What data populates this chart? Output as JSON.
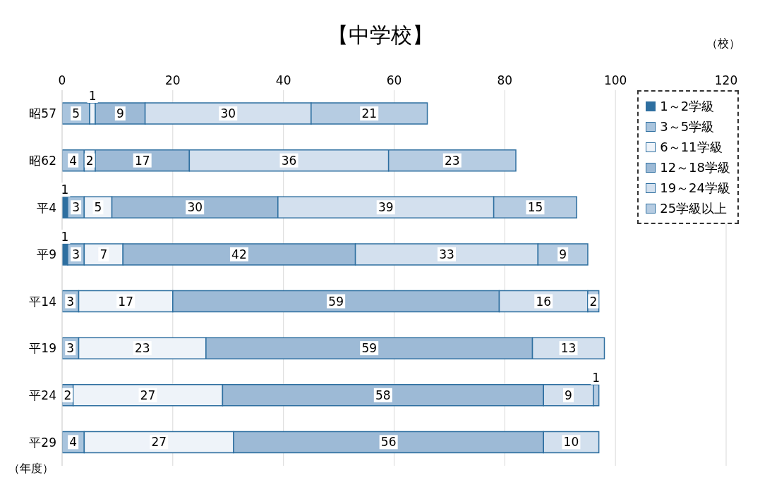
{
  "chart_data": {
    "type": "bar",
    "orientation": "horizontal",
    "stacked": true,
    "title": "【中学校】",
    "annotations": [
      "（校）"
    ],
    "ylabel": "（年度）",
    "categories": [
      "昭57",
      "昭62",
      "平4",
      "平9",
      "平14",
      "平19",
      "平24",
      "平29"
    ],
    "series": [
      {
        "name": "1～2学級",
        "color": "#2e6fa0",
        "values": [
          null,
          null,
          1,
          1,
          null,
          null,
          null,
          null
        ]
      },
      {
        "name": "3～5学級",
        "color": "#a9c4dd",
        "values": [
          5,
          4,
          3,
          3,
          3,
          3,
          2,
          4
        ]
      },
      {
        "name": "6～11学級",
        "color": "#eef3f9",
        "values": [
          1,
          2,
          5,
          7,
          17,
          23,
          27,
          27
        ]
      },
      {
        "name": "12～18学級",
        "color": "#9dbad6",
        "values": [
          9,
          17,
          30,
          42,
          59,
          59,
          58,
          56
        ]
      },
      {
        "name": "19～24学級",
        "color": "#d3e0ee",
        "values": [
          30,
          36,
          39,
          33,
          16,
          13,
          9,
          10
        ]
      },
      {
        "name": "25学級以上",
        "color": "#b6cce2",
        "values": [
          21,
          23,
          15,
          9,
          2,
          null,
          1,
          null
        ]
      }
    ],
    "xlim": [
      0,
      120
    ],
    "xticks": [
      0,
      20,
      40,
      60,
      80,
      100,
      120
    ],
    "grid": "x",
    "legend": "top right",
    "data_labels": true
  }
}
